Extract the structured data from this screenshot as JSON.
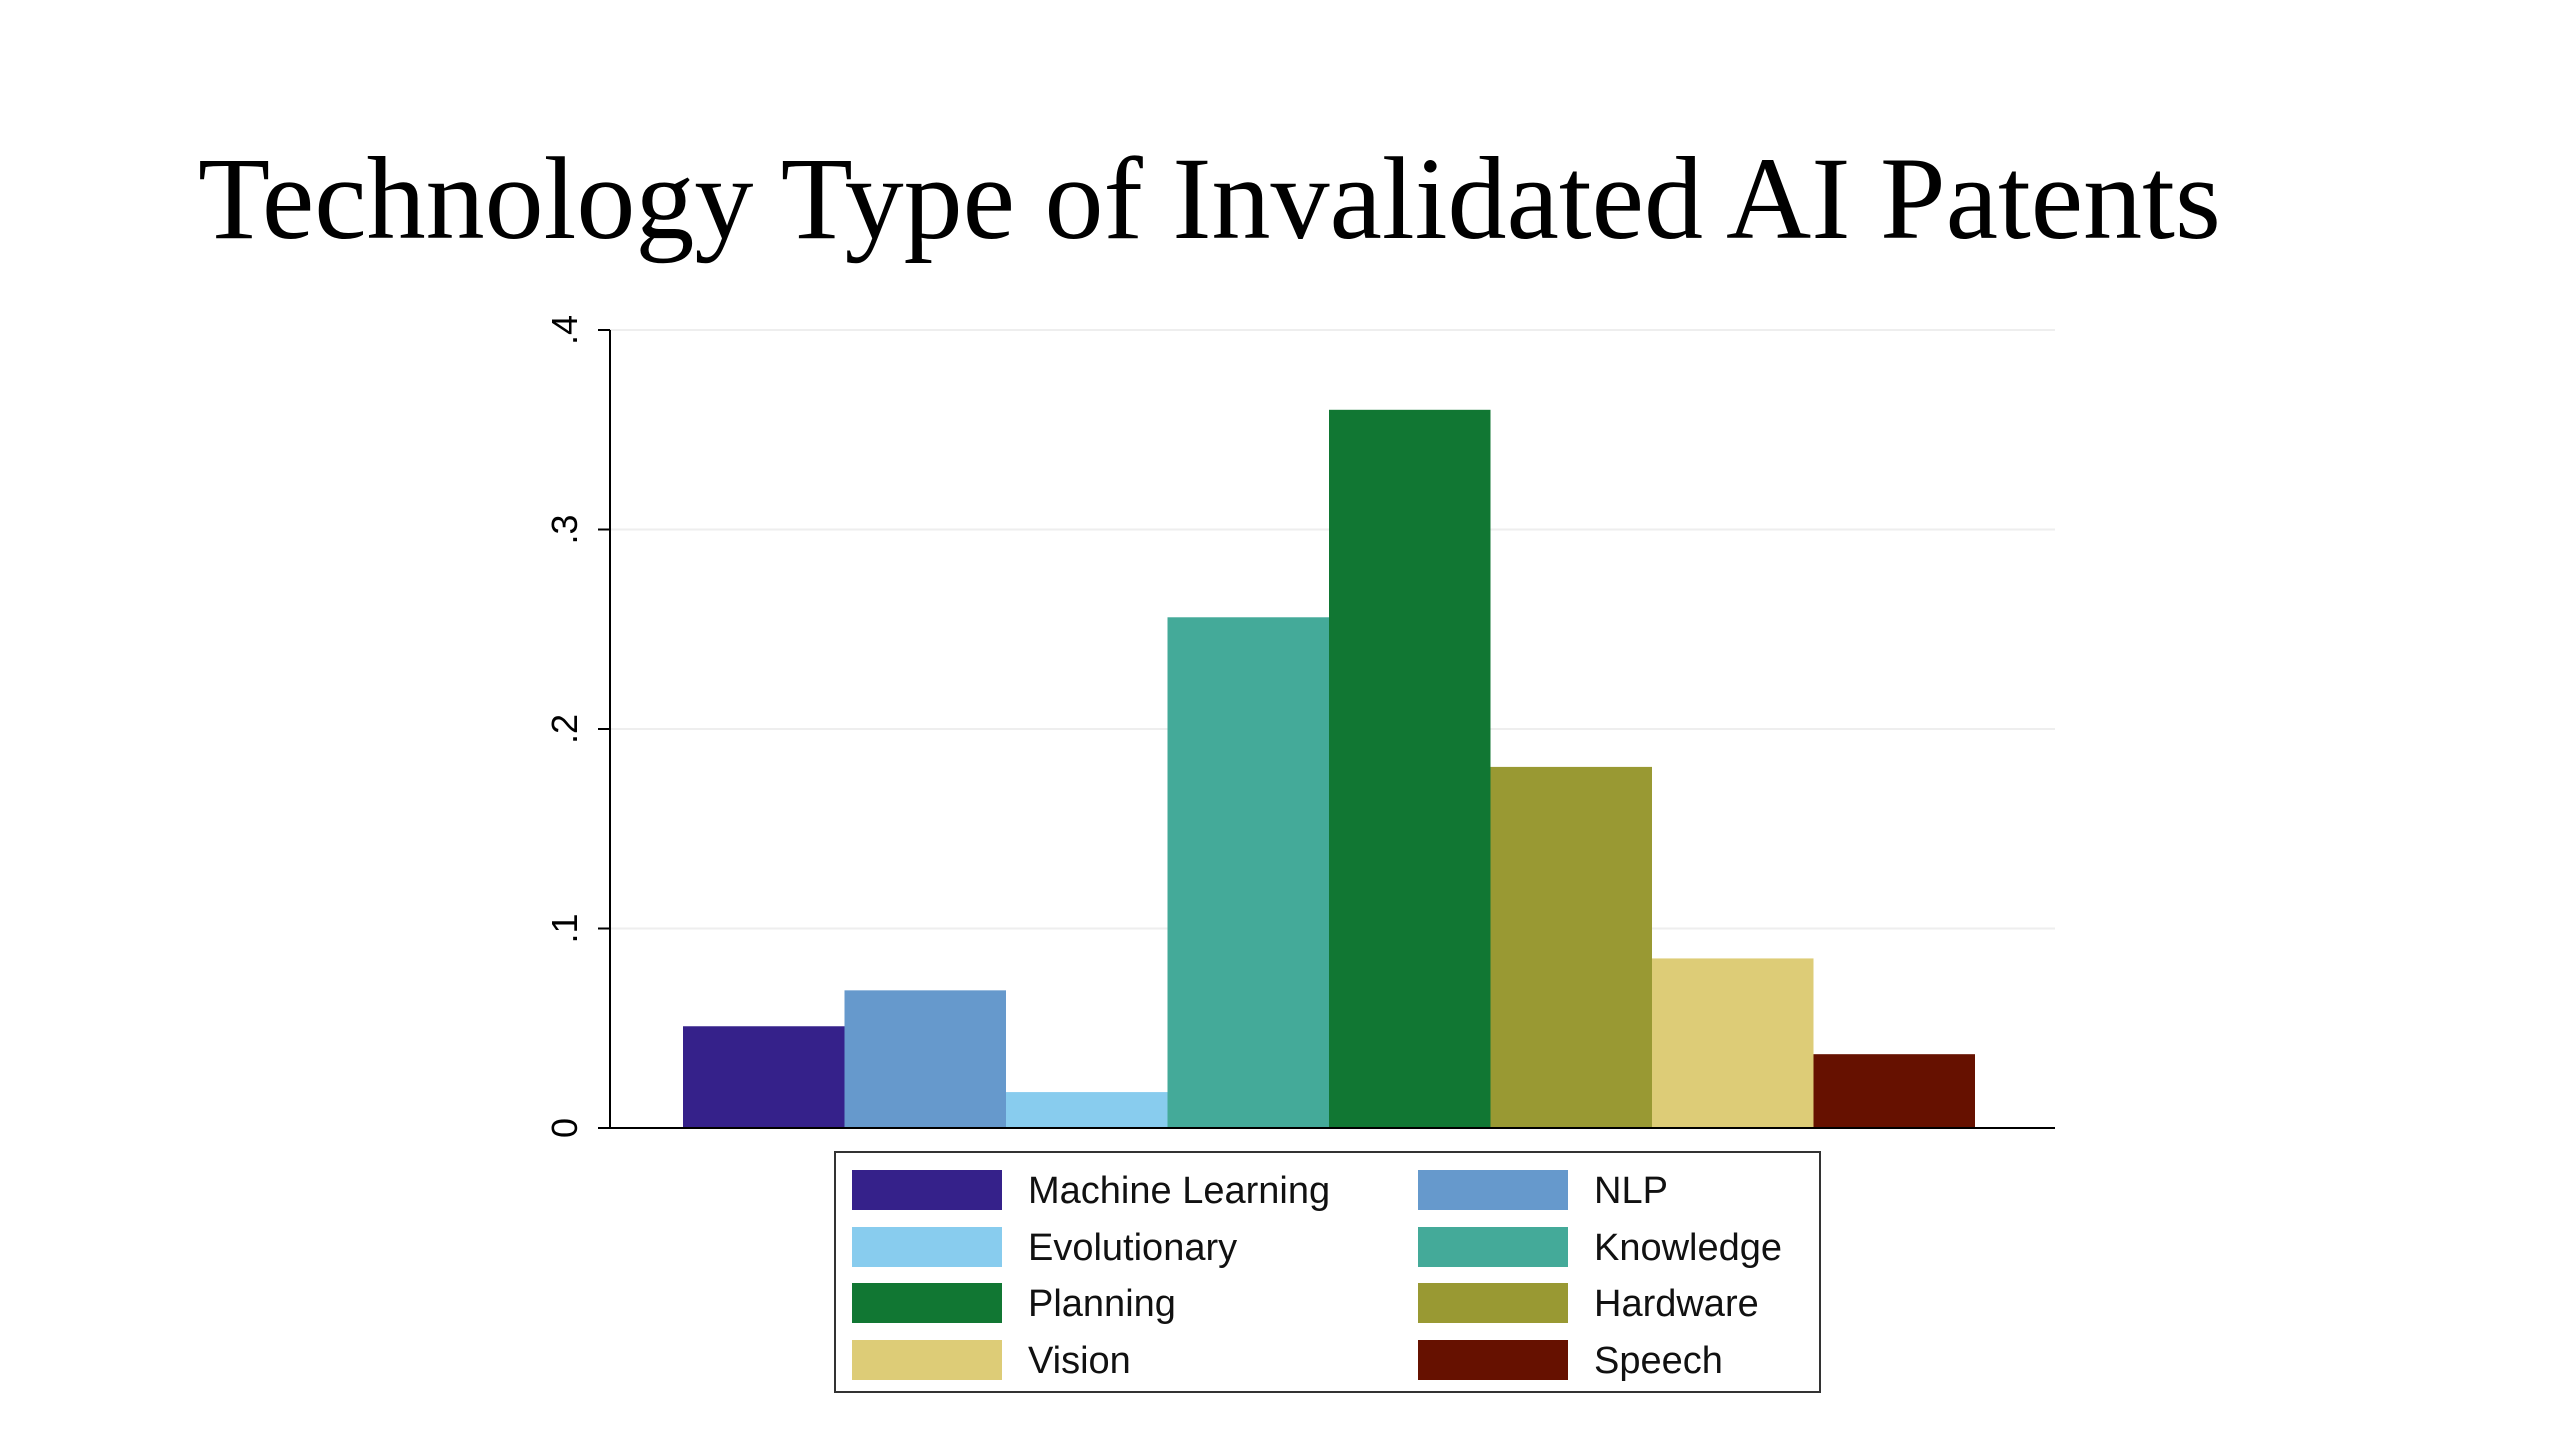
{
  "title": "Technology Type of Invalidated AI Patents",
  "chart_data": {
    "type": "bar",
    "title": "Technology Type of Invalidated AI Patents",
    "xlabel": "",
    "ylabel": "",
    "ylim": [
      0,
      0.4
    ],
    "yticks": [
      {
        "value": 0,
        "label": "0"
      },
      {
        "value": 0.1,
        "label": ".1"
      },
      {
        "value": 0.2,
        "label": ".2"
      },
      {
        "value": 0.3,
        "label": ".3"
      },
      {
        "value": 0.4,
        "label": ".4"
      }
    ],
    "grid": true,
    "legend_position": "bottom",
    "series": [
      {
        "name": "Machine Learning",
        "value": 0.051,
        "color": "#35218a"
      },
      {
        "name": "NLP",
        "value": 0.069,
        "color": "#6699cc"
      },
      {
        "name": "Evolutionary",
        "value": 0.018,
        "color": "#88ccee"
      },
      {
        "name": "Knowledge",
        "value": 0.256,
        "color": "#44aa99"
      },
      {
        "name": "Planning",
        "value": 0.36,
        "color": "#117733"
      },
      {
        "name": "Hardware",
        "value": 0.181,
        "color": "#999933"
      },
      {
        "name": "Vision",
        "value": 0.085,
        "color": "#ddcc77"
      },
      {
        "name": "Speech",
        "value": 0.037,
        "color": "#661100"
      }
    ]
  }
}
